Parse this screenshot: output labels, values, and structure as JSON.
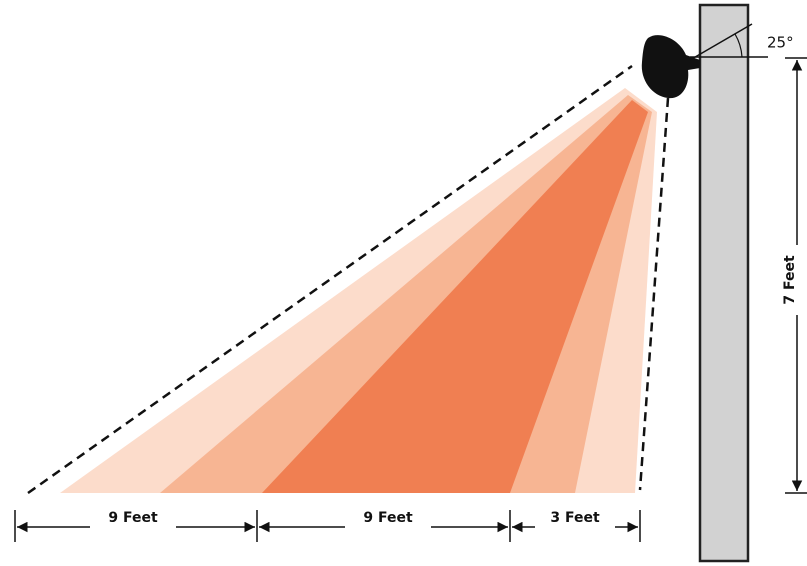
{
  "angle_label": "25°",
  "height_label": "7 Feet",
  "distances": [
    "9 Feet",
    "9 Feet",
    "3 Feet"
  ]
}
